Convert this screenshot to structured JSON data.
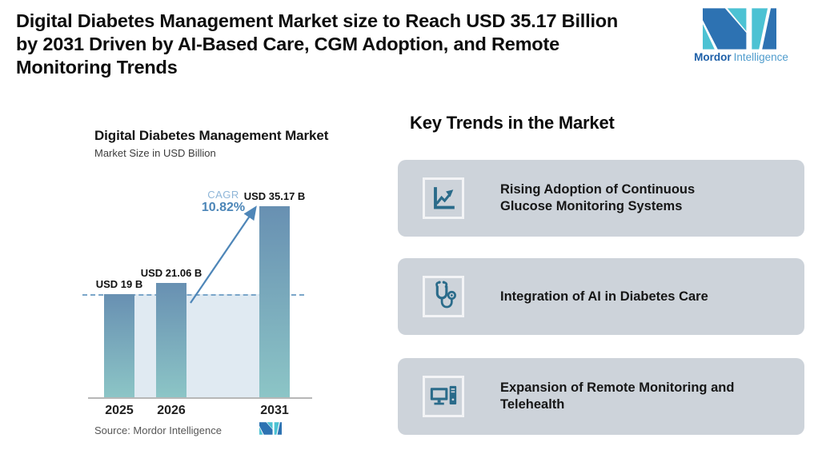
{
  "header": {
    "title_lines": [
      "Digital Diabetes Management Market size to Reach USD 35.17 Billion",
      "by 2031 Driven by AI-Based Care, CGM Adoption, and Remote",
      "Monitoring Trends"
    ],
    "brand": {
      "bold": "Mordor",
      "light": "Intelligence"
    }
  },
  "chart_data": {
    "type": "bar",
    "title": "Digital Diabetes Management Market",
    "subtitle": "Market Size in USD Billion",
    "categories": [
      "2025",
      "2026",
      "2031"
    ],
    "values": [
      19,
      21.06,
      35.17
    ],
    "bar_labels": [
      "USD 19 B",
      "USD 21.06 B",
      "USD 35.17 B"
    ],
    "xlabel": "",
    "ylabel": "Market Size in USD Billion",
    "ylim": [
      0,
      35.17
    ],
    "grid": "off",
    "legend": "none",
    "cagr": {
      "label": "CAGR",
      "value": "10.82%"
    },
    "reference_line_value": 19,
    "source": "Source: Mordor Intelligence",
    "colors": {
      "bar_top": "#6890b2",
      "bar_bottom": "#8cc5c6",
      "reference_fill": "#e0eaf2",
      "dashed_line": "#7aa6c9",
      "arrow": "#4e86b8",
      "logo_teal": "#4cc2d3",
      "logo_blue": "#2d72b2"
    }
  },
  "trends": {
    "heading": "Key Trends in the Market",
    "cards": [
      {
        "icon": "line-chart-growth-icon",
        "lines": [
          "Rising Adoption of Continuous",
          "Glucose Monitoring Systems"
        ]
      },
      {
        "icon": "stethoscope-icon",
        "lines": [
          "Integration of AI in Diabetes Care"
        ]
      },
      {
        "icon": "desktop-computer-icon",
        "lines": [
          "Expansion of Remote Monitoring and",
          "Telehealth"
        ]
      }
    ]
  }
}
